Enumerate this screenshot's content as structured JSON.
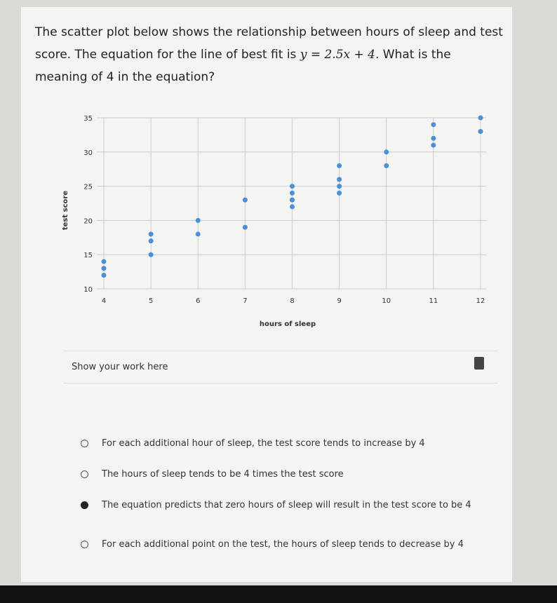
{
  "question": {
    "before": "The scatter plot below shows the relationship between hours of sleep and test score. The equation for the line of best fit is",
    "equation": "y = 2.5x + 4",
    "after": ". What is the meaning of 4 in the equation?"
  },
  "chart_data": {
    "type": "scatter",
    "x_label": "hours of sleep",
    "y_label": "test score",
    "x": [
      4,
      4,
      4,
      5,
      5,
      5,
      6,
      6,
      7,
      7,
      8,
      8,
      8,
      8,
      9,
      9,
      9,
      9,
      10,
      10,
      11,
      11,
      11,
      12,
      12
    ],
    "y": [
      14,
      13,
      12,
      18,
      17,
      15,
      20,
      18,
      23,
      19,
      25,
      24,
      23,
      22,
      28,
      26,
      25,
      24,
      30,
      28,
      34,
      32,
      31,
      35,
      33
    ],
    "color": "#4a8fd8",
    "xlim": [
      4,
      12
    ],
    "ylim": [
      10,
      35
    ],
    "xticks": [
      4,
      5,
      6,
      7,
      8,
      9,
      10,
      11,
      12
    ],
    "yticks": [
      10,
      15,
      20,
      25,
      30,
      35
    ],
    "grid": true
  },
  "work": {
    "label": "Show your work here"
  },
  "options": [
    "For each additional hour of sleep, the test score tends to increase by 4",
    "The hours of sleep tends to be 4 times the test score",
    "The equation predicts that zero hours of sleep will result in the test score to be 4",
    "For each additional point on the test, the hours of sleep tends to decrease by 4"
  ],
  "selected": 2
}
